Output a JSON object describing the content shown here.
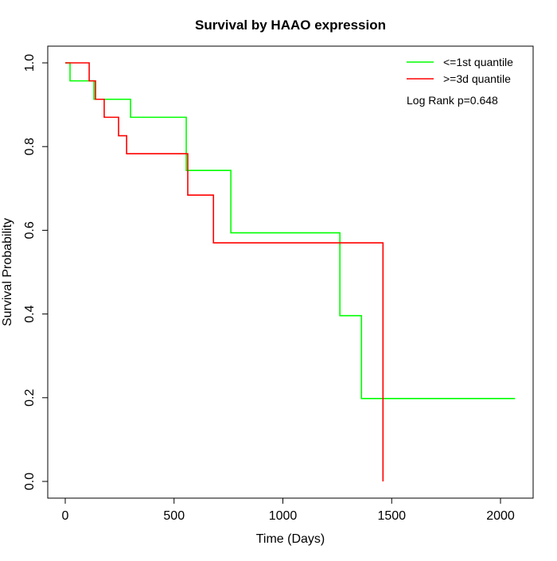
{
  "chart_data": {
    "type": "line",
    "step": true,
    "title": "Survival by HAAO expression",
    "xlabel": "Time (Days)",
    "ylabel": "Survival Probability",
    "xlim": [
      0,
      2070
    ],
    "ylim": [
      0,
      1
    ],
    "xticks": [
      "0",
      "500",
      "1000",
      "1500",
      "2000"
    ],
    "yticks": [
      "0.0",
      "0.2",
      "0.4",
      "0.6",
      "0.8",
      "1.0"
    ],
    "grid": false,
    "legend_position": "top-right",
    "annotation": "Log Rank p=0.648",
    "series": [
      {
        "name": "<=1st quantile",
        "color": "#00ff00",
        "x": [
          0,
          22,
          132,
          300,
          556,
          761,
          1262,
          1361,
          2067
        ],
        "y": [
          1.0,
          0.957,
          0.913,
          0.87,
          0.743,
          0.594,
          0.396,
          0.198,
          0.198
        ]
      },
      {
        "name": ">=3d quantile",
        "color": "#ff0000",
        "x": [
          0,
          110,
          139,
          179,
          245,
          282,
          563,
          681,
          1460,
          1460
        ],
        "y": [
          1.0,
          0.957,
          0.913,
          0.87,
          0.826,
          0.783,
          0.684,
          0.57,
          0.57,
          0.0
        ]
      }
    ]
  }
}
